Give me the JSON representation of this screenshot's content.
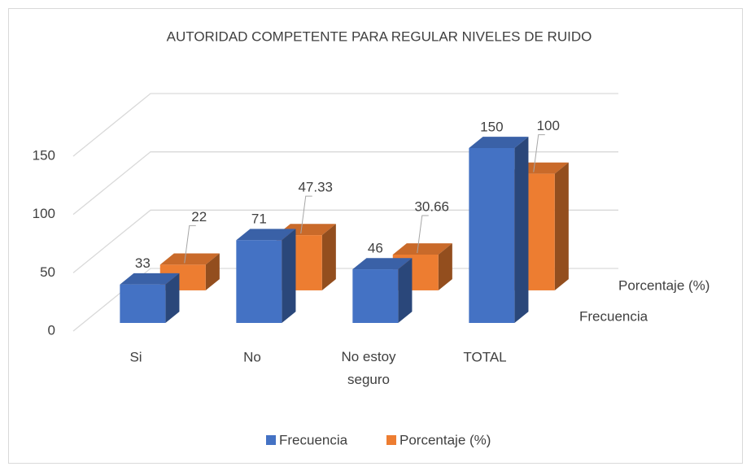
{
  "chart_data": {
    "type": "bar3d",
    "title": "AUTORIDAD COMPETENTE PARA REGULAR NIVELES DE RUIDO",
    "categories": [
      "Si",
      "No",
      "No estoy seguro",
      "TOTAL"
    ],
    "series": [
      {
        "name": "Frecuencia",
        "color": "#4472c4",
        "values": [
          33,
          71,
          46,
          150
        ]
      },
      {
        "name": "Porcentaje (%)",
        "color": "#ed7d31",
        "values": [
          22,
          47.33,
          30.66,
          100
        ]
      }
    ],
    "ylim": [
      0,
      150
    ],
    "yticks": [
      0,
      50,
      100,
      150
    ],
    "grid": true,
    "legend": "bottom"
  }
}
